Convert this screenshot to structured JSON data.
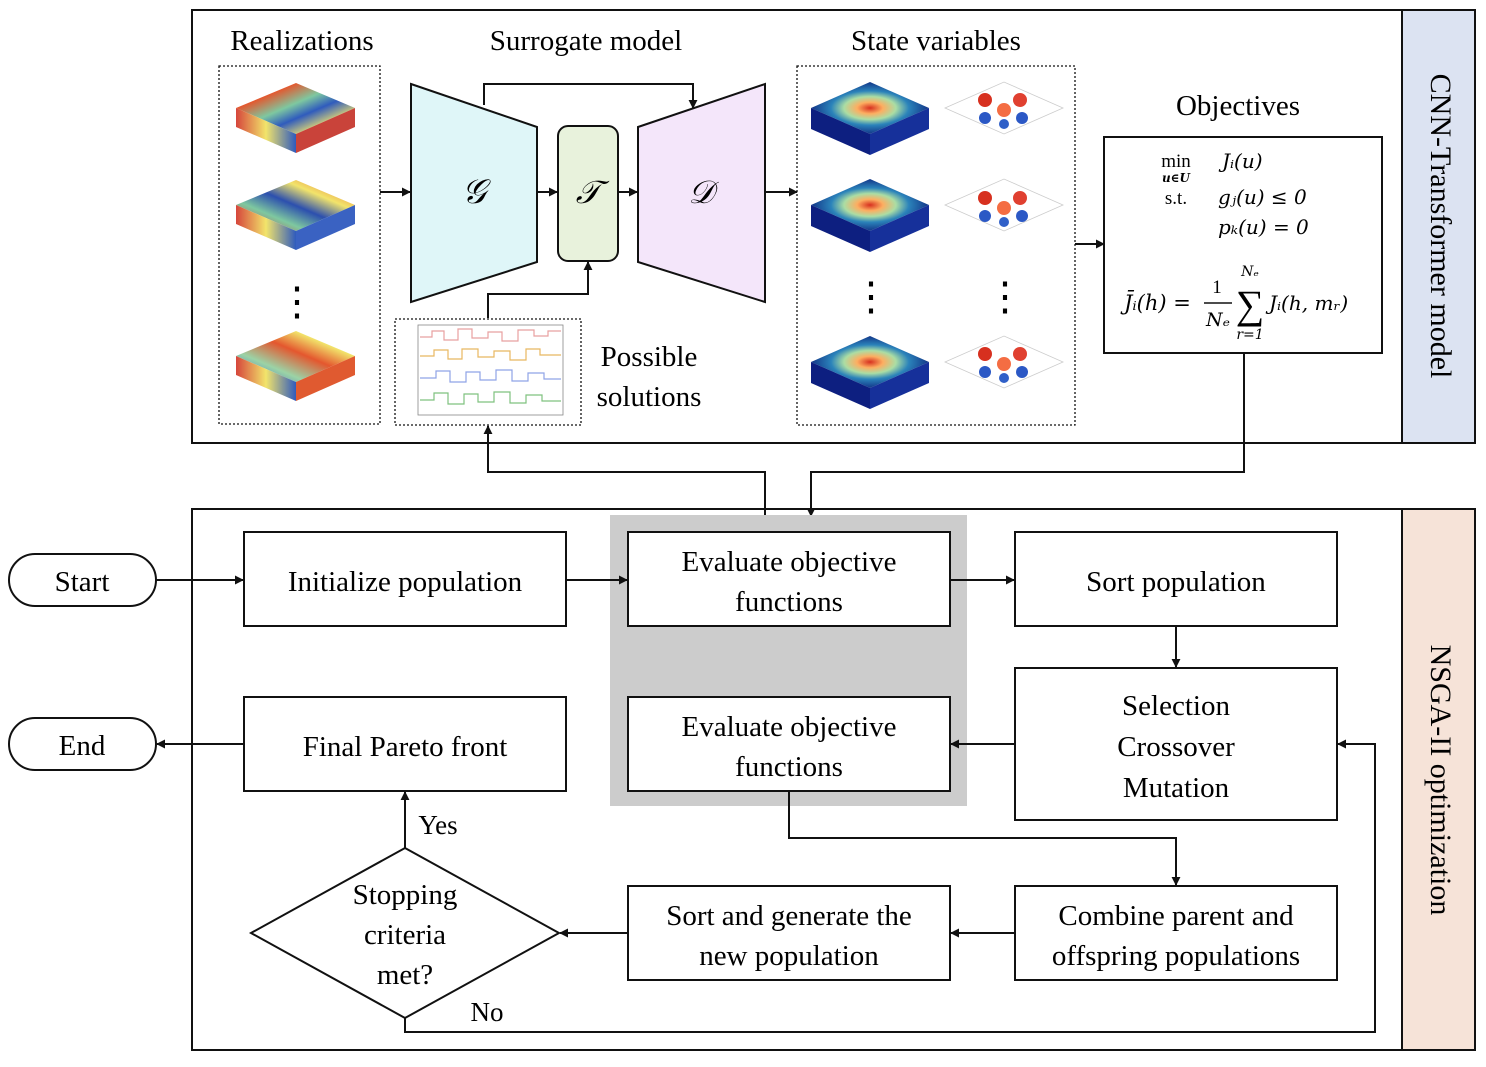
{
  "top_panel": {
    "side_label": "CNN-Transformer model",
    "side_color": "#dce3f2",
    "realizations": {
      "title": "Realizations",
      "ellipsis": "⋮"
    },
    "surrogate": {
      "title": "Surrogate model",
      "encoder": "𝒢",
      "transformer": "𝒯",
      "decoder": "𝒟",
      "encoder_color": "#dff6f8",
      "transformer_color": "#e8f2dc",
      "decoder_color": "#f4e6fa"
    },
    "solutions": {
      "label_line1": "Possible",
      "label_line2": "solutions"
    },
    "state_variables": {
      "title": "State variables",
      "ellipsis": "⋮"
    },
    "objectives": {
      "title": "Objectives",
      "min": "min",
      "min_sub": "u∈U",
      "st": "s.t.",
      "line1": "Jᵢ(u)",
      "line2": "gⱼ(u) ≤ 0",
      "line3": "pₖ(u) = 0",
      "mean_lhs": "J̄ᵢ(h) =",
      "frac_num": "1",
      "frac_den": "Nₑ",
      "sum_top": "Nₑ",
      "sum_bottom": "r=1",
      "sum_body": "Jᵢ(h, mᵣ)"
    }
  },
  "bottom_panel": {
    "side_label": "NSGA-II optimization",
    "side_color": "#f6e3d8",
    "highlight_color": "#cccccc",
    "start": "Start",
    "end": "End",
    "init": "Initialize population",
    "eval1_line1": "Evaluate objective",
    "eval1_line2": "functions",
    "sort": "Sort population",
    "selection_line1": "Selection",
    "selection_line2": "Crossover",
    "selection_line3": "Mutation",
    "eval2_line1": "Evaluate objective",
    "eval2_line2": "functions",
    "final": "Final Pareto front",
    "stop_line1": "Stopping",
    "stop_line2": "criteria",
    "stop_line3": "met?",
    "yes": "Yes",
    "no": "No",
    "sortgen_line1": "Sort and generate the",
    "sortgen_line2": "new population",
    "combine_line1": "Combine parent and",
    "combine_line2": "offspring populations"
  }
}
